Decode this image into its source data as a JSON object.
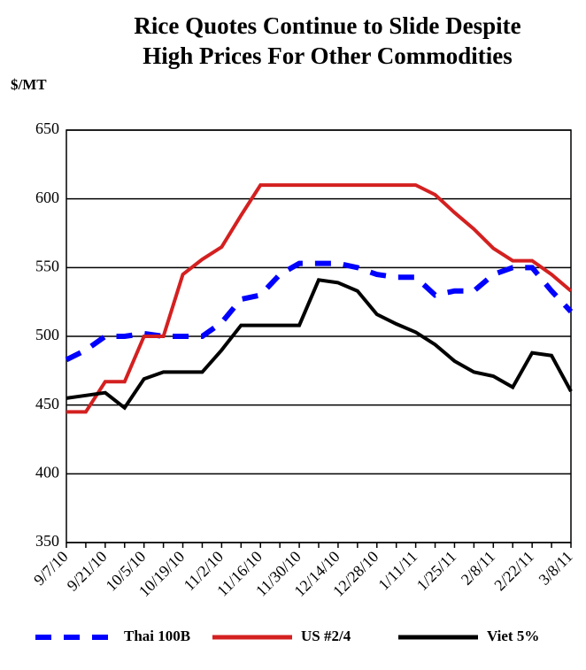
{
  "chart_data": {
    "type": "line",
    "title": "Rice Quotes Continue to Slide Despite High Prices For Other Commodities",
    "y_label": "$/MT",
    "categories": [
      "9/7/10",
      null,
      "9/21/10",
      null,
      "10/5/10",
      null,
      "10/19/10",
      null,
      "11/2/10",
      null,
      "11/16/10",
      null,
      "11/30/10",
      null,
      "12/14/10",
      null,
      "12/28/10",
      null,
      "1/11/11",
      null,
      "1/25/11",
      null,
      "2/8/11",
      null,
      "2/22/11",
      null,
      "3/8/11"
    ],
    "series": [
      {
        "name": "Thai 100B",
        "color": "#0000ff",
        "dash": true,
        "values": [
          483,
          490,
          500,
          500,
          502,
          500,
          500,
          500,
          510,
          527,
          530,
          545,
          553,
          553,
          553,
          550,
          545,
          543,
          543,
          530,
          533,
          533,
          545,
          550,
          550,
          533,
          518
        ]
      },
      {
        "name": "US #2/4",
        "color": "#d42020",
        "dash": false,
        "values": [
          445,
          445,
          467,
          467,
          500,
          500,
          545,
          556,
          565,
          588,
          610,
          610,
          610,
          610,
          610,
          610,
          610,
          610,
          610,
          603,
          590,
          578,
          564,
          555,
          555,
          545,
          533
        ]
      },
      {
        "name": "Viet 5%",
        "color": "#000000",
        "dash": false,
        "values": [
          455,
          457,
          459,
          448,
          469,
          474,
          474,
          474,
          490,
          508,
          508,
          508,
          508,
          541,
          539,
          533,
          516,
          509,
          503,
          494,
          482,
          474,
          471,
          463,
          488,
          486,
          460
        ]
      }
    ],
    "ylim": [
      350,
      650
    ],
    "yticks": [
      350,
      400,
      450,
      500,
      550,
      600,
      650
    ],
    "grid": true,
    "legend": "bottom"
  }
}
